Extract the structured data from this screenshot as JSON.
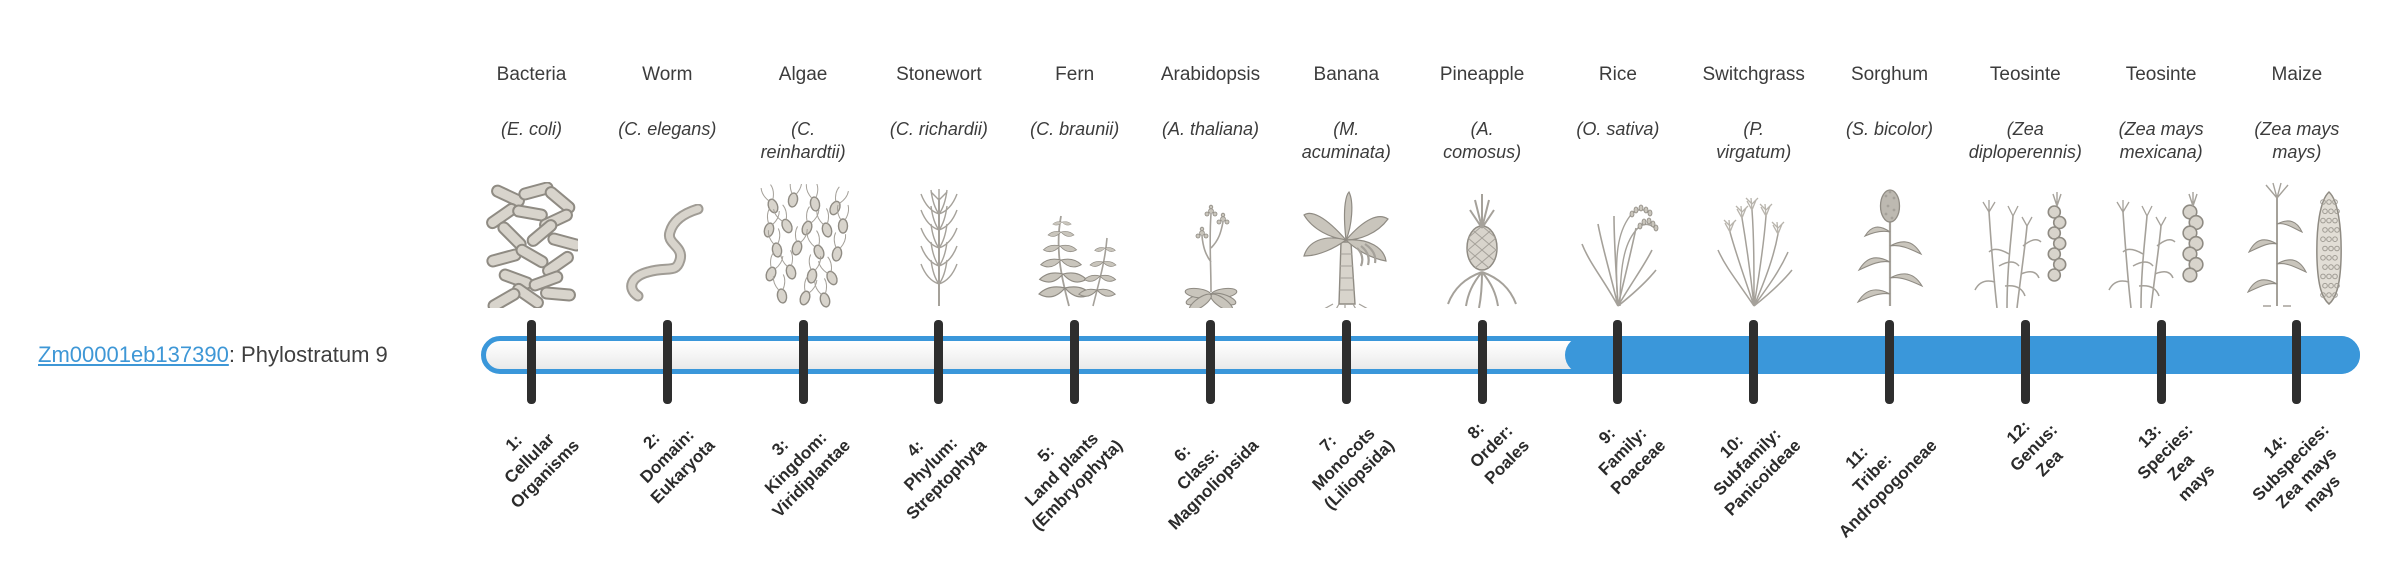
{
  "gene": {
    "id": "Zm00001eb137390",
    "label_suffix": ": Phylostratum 9",
    "phylostratum": 9
  },
  "colors": {
    "accent_blue": "#3a97da",
    "tick_dark": "#2e2e2e",
    "text_dark": "#3c3c3c",
    "link_blue": "#3e97d6"
  },
  "organisms": [
    {
      "name": "Bacteria",
      "species_lines": [
        "(E. coli)"
      ],
      "icon": "bacteria-icon",
      "stratum_label_lines": [
        "1:",
        "Cellular",
        "Organisms"
      ]
    },
    {
      "name": "Worm",
      "species_lines": [
        "(C. elegans)"
      ],
      "icon": "worm-icon",
      "stratum_label_lines": [
        "2:",
        "Domain:",
        "Eukaryota"
      ]
    },
    {
      "name": "Algae",
      "species_lines": [
        "(C.",
        "reinhardtii)"
      ],
      "icon": "algae-icon",
      "stratum_label_lines": [
        "3:",
        "Kingdom:",
        "Viridiplantae"
      ]
    },
    {
      "name": "Stonewort",
      "species_lines": [
        "(C. richardii)"
      ],
      "icon": "stonewort-icon",
      "stratum_label_lines": [
        "4:",
        "Phylum:",
        "Streptophyta"
      ]
    },
    {
      "name": "Fern",
      "species_lines": [
        "(C. braunii)"
      ],
      "icon": "fern-icon",
      "stratum_label_lines": [
        "5:",
        "Land plants",
        "(Embryophyta)"
      ]
    },
    {
      "name": "Arabidopsis",
      "species_lines": [
        "(A. thaliana)"
      ],
      "icon": "arabidopsis-icon",
      "stratum_label_lines": [
        "6:",
        "Class:",
        "Magnoliopsida"
      ]
    },
    {
      "name": "Banana",
      "species_lines": [
        "(M.",
        "acuminata)"
      ],
      "icon": "banana-icon",
      "stratum_label_lines": [
        "7:",
        "Monocots",
        "(Liliopsida)"
      ]
    },
    {
      "name": "Pineapple",
      "species_lines": [
        "(A.",
        "comosus)"
      ],
      "icon": "pineapple-icon",
      "stratum_label_lines": [
        "8:",
        "Order:",
        "Poales"
      ]
    },
    {
      "name": "Rice",
      "species_lines": [
        "(O. sativa)"
      ],
      "icon": "rice-icon",
      "stratum_label_lines": [
        "9:",
        "Family:",
        "Poaceae"
      ]
    },
    {
      "name": "Switchgrass",
      "species_lines": [
        "(P.",
        "virgatum)"
      ],
      "icon": "switchgrass-icon",
      "stratum_label_lines": [
        "10:",
        "Subfamily:",
        "Panicoideae"
      ]
    },
    {
      "name": "Sorghum",
      "species_lines": [
        "(S. bicolor)"
      ],
      "icon": "sorghum-icon",
      "stratum_label_lines": [
        "11:",
        "Tribe:",
        "Andropogoneae"
      ]
    },
    {
      "name": "Teosinte",
      "species_lines": [
        "(Zea",
        "diploperennis)"
      ],
      "icon": "teosinte-diploperennis-icon",
      "stratum_label_lines": [
        "12:",
        "Genus:",
        "Zea"
      ]
    },
    {
      "name": "Teosinte",
      "species_lines": [
        "(Zea mays",
        "mexicana)"
      ],
      "icon": "teosinte-mexicana-icon",
      "stratum_label_lines": [
        "13:",
        "Species:",
        "Zea",
        "mays"
      ]
    },
    {
      "name": "Maize",
      "species_lines": [
        "(Zea mays",
        "mays)"
      ],
      "icon": "maize-icon",
      "stratum_label_lines": [
        "14:",
        "Subspecies:",
        "Zea mays",
        "mays"
      ]
    }
  ]
}
